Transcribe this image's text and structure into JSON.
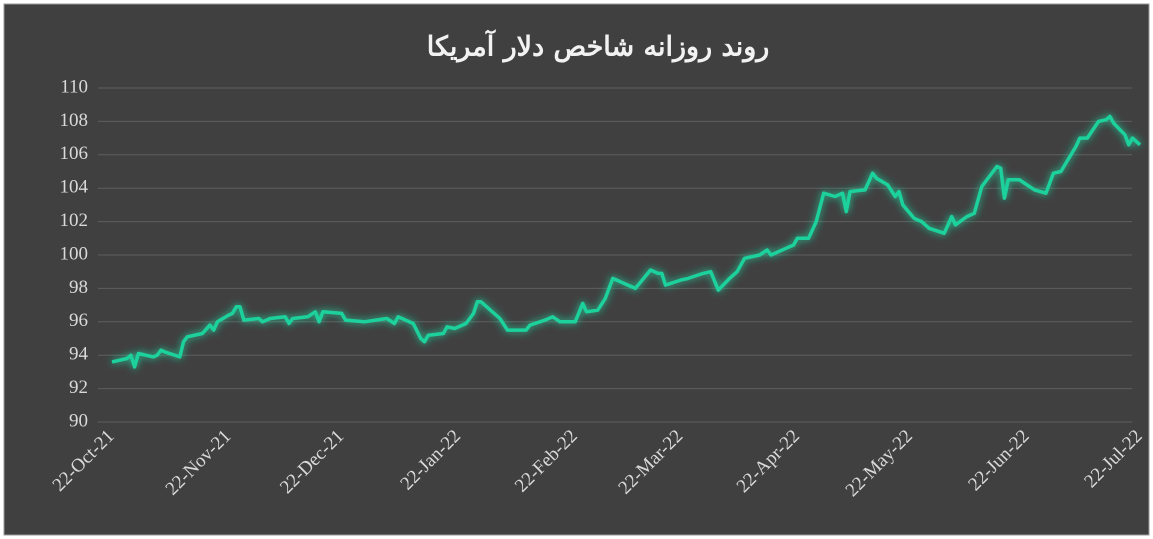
{
  "chart_data": {
    "type": "line",
    "title": "روند روزانه شاخص دلار آمریکا",
    "x": [
      "2021-10-22",
      "2021-10-26",
      "2021-10-27",
      "2021-10-28",
      "2021-10-29",
      "2021-11-02",
      "2021-11-03",
      "2021-11-04",
      "2021-11-05",
      "2021-11-09",
      "2021-11-10",
      "2021-11-11",
      "2021-11-15",
      "2021-11-17",
      "2021-11-18",
      "2021-11-19",
      "2021-11-22",
      "2021-11-23",
      "2021-11-24",
      "2021-11-25",
      "2021-11-26",
      "2021-11-30",
      "2021-12-01",
      "2021-12-03",
      "2021-12-07",
      "2021-12-08",
      "2021-12-09",
      "2021-12-13",
      "2021-12-15",
      "2021-12-16",
      "2021-12-17",
      "2021-12-22",
      "2021-12-23",
      "2021-12-28",
      "2022-01-03",
      "2022-01-05",
      "2022-01-06",
      "2022-01-10",
      "2022-01-12",
      "2022-01-13",
      "2022-01-14",
      "2022-01-18",
      "2022-01-19",
      "2022-01-21",
      "2022-01-24",
      "2022-01-26",
      "2022-01-27",
      "2022-01-28",
      "2022-02-02",
      "2022-02-04",
      "2022-02-09",
      "2022-02-10",
      "2022-02-14",
      "2022-02-16",
      "2022-02-18",
      "2022-02-22",
      "2022-02-24",
      "2022-02-25",
      "2022-02-28",
      "2022-03-02",
      "2022-03-04",
      "2022-03-08",
      "2022-03-10",
      "2022-03-14",
      "2022-03-16",
      "2022-03-17",
      "2022-03-18",
      "2022-03-22",
      "2022-03-24",
      "2022-03-28",
      "2022-03-30",
      "2022-04-01",
      "2022-04-04",
      "2022-04-06",
      "2022-04-08",
      "2022-04-12",
      "2022-04-14",
      "2022-04-15",
      "2022-04-19",
      "2022-04-21",
      "2022-04-22",
      "2022-04-25",
      "2022-04-27",
      "2022-04-29",
      "2022-05-02",
      "2022-05-04",
      "2022-05-05",
      "2022-05-06",
      "2022-05-10",
      "2022-05-12",
      "2022-05-13",
      "2022-05-16",
      "2022-05-18",
      "2022-05-19",
      "2022-05-20",
      "2022-05-23",
      "2022-05-25",
      "2022-05-27",
      "2022-05-31",
      "2022-06-02",
      "2022-06-03",
      "2022-06-06",
      "2022-06-08",
      "2022-06-10",
      "2022-06-14",
      "2022-06-15",
      "2022-06-16",
      "2022-06-17",
      "2022-06-20",
      "2022-06-22",
      "2022-06-24",
      "2022-06-27",
      "2022-06-29",
      "2022-07-01",
      "2022-07-05",
      "2022-07-06",
      "2022-07-08",
      "2022-07-11",
      "2022-07-13",
      "2022-07-14",
      "2022-07-15",
      "2022-07-18",
      "2022-07-19",
      "2022-07-20",
      "2022-07-22"
    ],
    "values": [
      93.6,
      93.8,
      94.0,
      93.3,
      94.1,
      93.9,
      94.0,
      94.3,
      94.2,
      93.9,
      94.8,
      95.1,
      95.3,
      95.8,
      95.5,
      96.0,
      96.4,
      96.5,
      96.9,
      96.9,
      96.1,
      96.2,
      96.0,
      96.2,
      96.3,
      95.9,
      96.2,
      96.3,
      96.6,
      96.0,
      96.6,
      96.5,
      96.1,
      96.0,
      96.2,
      95.9,
      96.3,
      95.9,
      95.0,
      94.8,
      95.2,
      95.3,
      95.7,
      95.6,
      95.9,
      96.5,
      97.2,
      97.2,
      96.2,
      95.5,
      95.5,
      95.8,
      96.1,
      96.3,
      96.0,
      96.0,
      97.1,
      96.6,
      96.7,
      97.4,
      98.6,
      98.2,
      98.0,
      99.1,
      98.9,
      98.9,
      98.2,
      98.5,
      98.6,
      98.9,
      99.0,
      97.9,
      98.6,
      99.0,
      99.8,
      100.0,
      100.3,
      100.0,
      100.4,
      100.6,
      101.0,
      101.0,
      102.0,
      103.7,
      103.5,
      103.7,
      102.6,
      103.8,
      103.9,
      104.9,
      104.6,
      104.2,
      103.5,
      103.8,
      103.0,
      102.2,
      102.0,
      101.6,
      101.3,
      102.3,
      101.8,
      102.3,
      102.5,
      104.1,
      105.3,
      105.2,
      103.4,
      104.5,
      104.5,
      104.2,
      103.9,
      103.7,
      104.9,
      105.0,
      106.5,
      107.0,
      107.0,
      108.0,
      108.1,
      108.3,
      107.9,
      107.2,
      106.6,
      107.0,
      106.6
    ],
    "color": "#1fd19c",
    "xlim": [
      "2021-10-22",
      "2022-07-22"
    ],
    "xticks": [
      {
        "value": "2021-10-22",
        "label": "22-Oct-21"
      },
      {
        "value": "2021-11-22",
        "label": "22-Nov-21"
      },
      {
        "value": "2021-12-22",
        "label": "22-Dec-21"
      },
      {
        "value": "2022-01-22",
        "label": "22-Jan-22"
      },
      {
        "value": "2022-02-22",
        "label": "22-Feb-22"
      },
      {
        "value": "2022-03-22",
        "label": "22-Mar-22"
      },
      {
        "value": "2022-04-22",
        "label": "22-Apr-22"
      },
      {
        "value": "2022-05-22",
        "label": "22-May-22"
      },
      {
        "value": "2022-06-22",
        "label": "22-Jun-22"
      },
      {
        "value": "2022-07-22",
        "label": "22-Jul-22"
      }
    ],
    "ylim": [
      90,
      110
    ],
    "yticks": [
      90,
      92,
      94,
      96,
      98,
      100,
      102,
      104,
      106,
      108,
      110
    ],
    "grid": true
  }
}
